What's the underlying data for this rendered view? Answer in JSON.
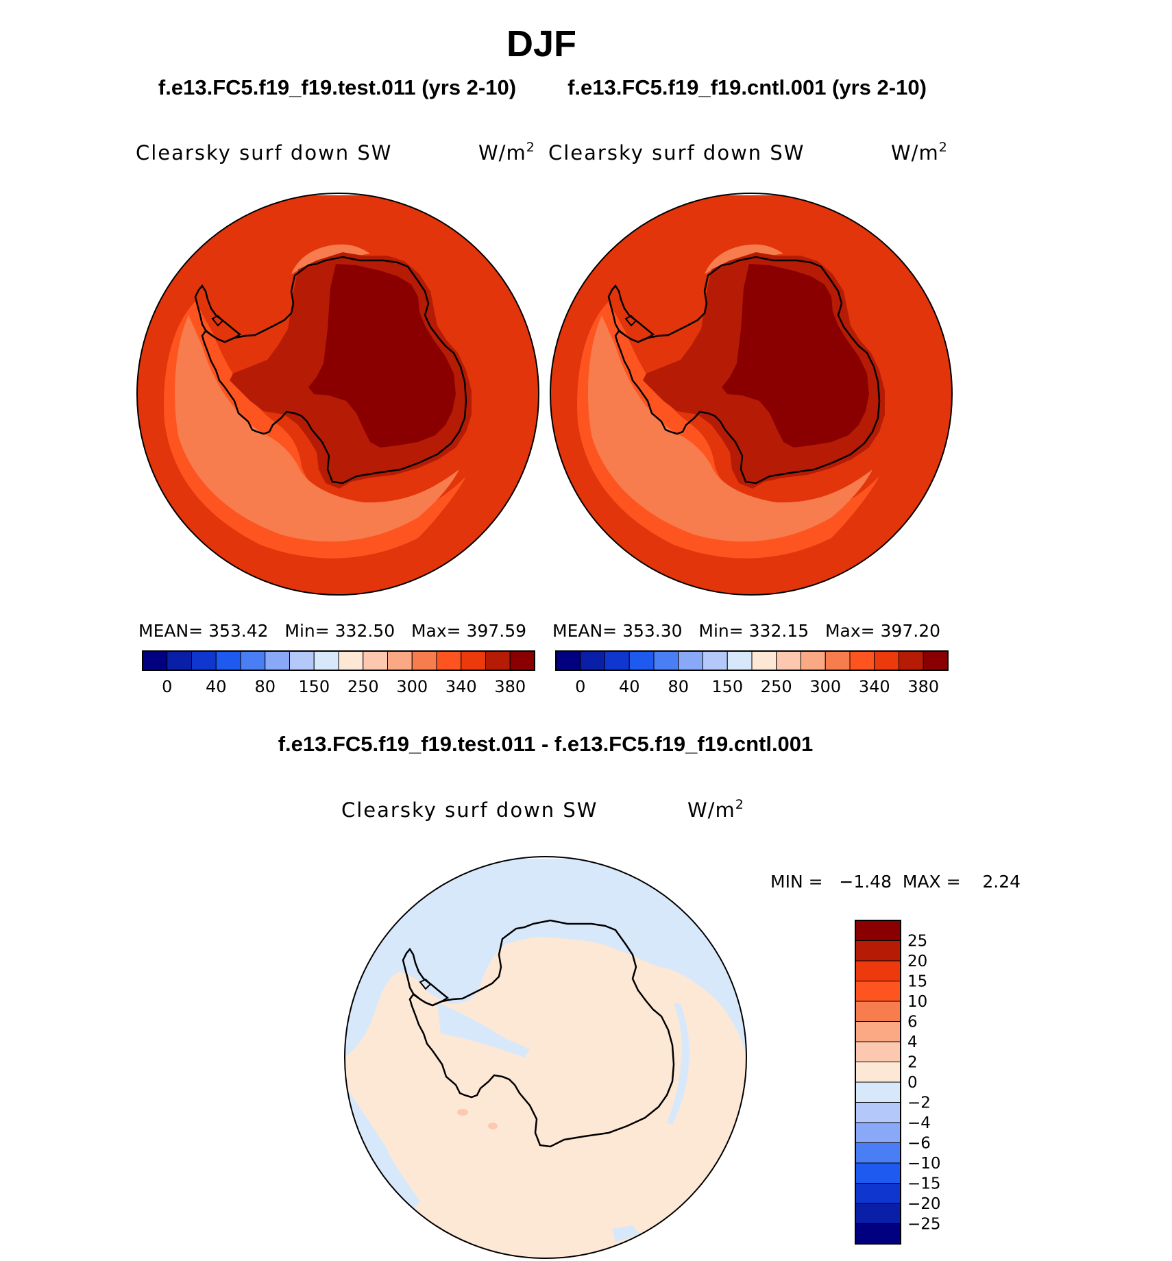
{
  "title": "DJF",
  "panels": [
    {
      "case": "f.e13.FC5.f19_f19.test.011 (yrs 2-10)",
      "variable": "Clearsky surf down SW",
      "units": "W/m",
      "units_sup": "2",
      "stats": "MEAN= 353.42   Min= 332.50   Max= 397.59"
    },
    {
      "case": "f.e13.FC5.f19_f19.cntl.001 (yrs 2-10)",
      "variable": "Clearsky surf down SW",
      "units": "W/m",
      "units_sup": "2",
      "stats": "MEAN= 353.30   Min= 332.15   Max= 397.20"
    }
  ],
  "abs_colorbar": {
    "colors": [
      "#000080",
      "#0a1fa8",
      "#0f37d0",
      "#1f5af0",
      "#4a7ef5",
      "#8aa8f8",
      "#b4c8fa",
      "#d8e8fb",
      "#fde8d6",
      "#fcc9b0",
      "#fba984",
      "#f77d4e",
      "#fe5520",
      "#ec3a0c",
      "#b61c05",
      "#8a0000"
    ],
    "labels": [
      "0",
      "40",
      "80",
      "150",
      "250",
      "300",
      "340",
      "380"
    ]
  },
  "diff": {
    "title": "f.e13.FC5.f19_f19.test.011 - f.e13.FC5.f19_f19.cntl.001",
    "variable": "Clearsky surf down SW",
    "units": "W/m",
    "units_sup": "2",
    "minmax": "MIN =   −1.48  MAX =    2.24",
    "colors": [
      "#8a0000",
      "#b61c05",
      "#ec3a0c",
      "#fe5520",
      "#f77d4e",
      "#fba984",
      "#fcc9b0",
      "#fde8d6",
      "#d8e8fb",
      "#b4c8fa",
      "#8aa8f8",
      "#4a7ef5",
      "#1f5af0",
      "#0f37d0",
      "#0a1fa8",
      "#000080"
    ],
    "labels": [
      "25",
      "20",
      "15",
      "10",
      "6",
      "4",
      "2",
      "0",
      "−2",
      "−4",
      "−6",
      "−10",
      "−15",
      "−20",
      "−25"
    ]
  },
  "map_colors": {
    "ocean_outer": "#e2350b",
    "ocean_band": "#fe5520",
    "ocean_band_light": "#f77d4e",
    "coast_band": "#b61c05",
    "interior": "#8a0000",
    "diff_positive": "#fde8d6",
    "diff_negative": "#d8e8fb",
    "diff_spot": "#fcc9b0"
  }
}
